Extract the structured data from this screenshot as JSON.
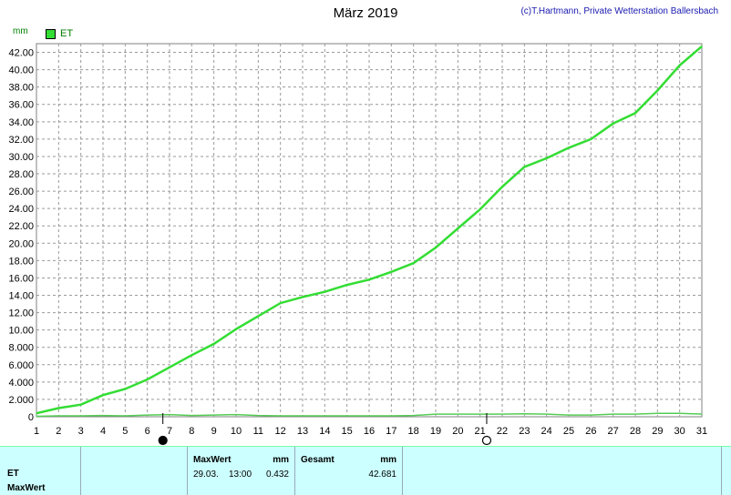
{
  "title": "März 2019",
  "credit": "(c)T.Hartmann, Private Wetterstation Ballersbach",
  "unit": "mm",
  "legend": {
    "label": "ET",
    "color": "#33dd33"
  },
  "chart_data": {
    "type": "line",
    "title": "März 2019",
    "ylabel": "mm",
    "ylim": [
      0,
      43
    ],
    "xlim": [
      1,
      31
    ],
    "y_ticks": [
      "0",
      "2.000",
      "4.000",
      "6.000",
      "8.000",
      "10.00",
      "12.00",
      "14.00",
      "16.00",
      "18.00",
      "20.00",
      "22.00",
      "24.00",
      "26.00",
      "28.00",
      "30.00",
      "32.00",
      "34.00",
      "36.00",
      "38.00",
      "40.00",
      "42.00"
    ],
    "x_ticks": [
      "1",
      "2",
      "3",
      "4",
      "5",
      "6",
      "7",
      "8",
      "9",
      "10",
      "11",
      "12",
      "13",
      "14",
      "15",
      "16",
      "17",
      "18",
      "19",
      "20",
      "21",
      "22",
      "23",
      "24",
      "25",
      "26",
      "27",
      "28",
      "29",
      "30",
      "31"
    ],
    "grid": true,
    "legend_position": "top-left",
    "series": [
      {
        "name": "ET",
        "color": "#33dd33",
        "x": [
          1,
          2,
          3,
          4,
          5,
          6,
          7,
          8,
          9,
          10,
          11,
          12,
          13,
          14,
          15,
          16,
          17,
          18,
          19,
          20,
          21,
          22,
          23,
          24,
          25,
          26,
          27,
          28,
          29,
          30,
          31
        ],
        "values": [
          0.4,
          1.0,
          1.4,
          2.5,
          3.2,
          4.3,
          5.7,
          7.1,
          8.4,
          10.1,
          11.6,
          13.1,
          13.8,
          14.4,
          15.2,
          15.8,
          16.7,
          17.7,
          19.5,
          21.7,
          23.9,
          26.5,
          28.8,
          29.8,
          31.0,
          32.0,
          33.8,
          35.0,
          37.6,
          40.5,
          42.7
        ]
      },
      {
        "name": "",
        "color": "#55cc55",
        "x": [
          1,
          2,
          3,
          4,
          5,
          6,
          7,
          8,
          9,
          10,
          11,
          12,
          13,
          14,
          15,
          16,
          17,
          18,
          19,
          20,
          21,
          22,
          23,
          24,
          25,
          26,
          27,
          28,
          29,
          30,
          31
        ],
        "values": [
          0.05,
          0.1,
          0.1,
          0.15,
          0.1,
          0.2,
          0.25,
          0.15,
          0.2,
          0.25,
          0.15,
          0.1,
          0.1,
          0.1,
          0.1,
          0.1,
          0.1,
          0.15,
          0.3,
          0.3,
          0.3,
          0.3,
          0.35,
          0.3,
          0.2,
          0.2,
          0.3,
          0.3,
          0.4,
          0.4,
          0.3
        ]
      }
    ],
    "markers": [
      {
        "day": 6.7,
        "symbol": "filled-circle"
      },
      {
        "day": 21.3,
        "symbol": "open-circle"
      }
    ]
  },
  "table": {
    "row_label_1": "ET",
    "row_label_2": "MaxWert",
    "maxwert_header": "MaxWert",
    "maxwert_unit": "mm",
    "maxwert_date": "29.03.",
    "maxwert_time": "13:00",
    "maxwert_value": "0.432",
    "gesamt_header": "Gesamt",
    "gesamt_unit": "mm",
    "gesamt_value": "42.681"
  }
}
